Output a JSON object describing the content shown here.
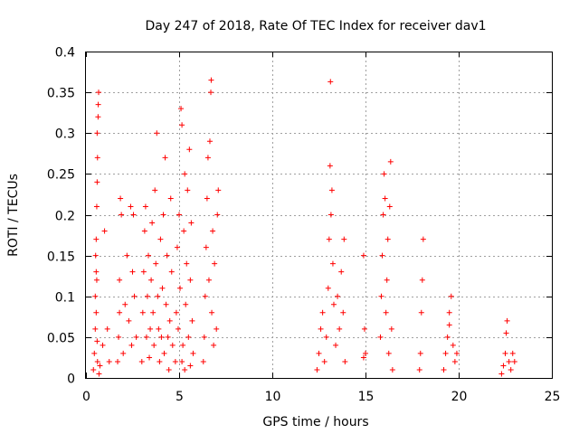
{
  "chart_data": {
    "type": "scatter",
    "title": "Day 247 of 2018, Rate Of TEC Index for receiver dav1",
    "xlabel": "GPS time / hours",
    "ylabel": "ROTI / TECUs",
    "xlim": [
      0,
      25
    ],
    "ylim": [
      0,
      0.4
    ],
    "x_ticks": [
      0,
      5,
      10,
      15,
      20,
      25
    ],
    "y_ticks": [
      0,
      0.05,
      0.1,
      0.15,
      0.2,
      0.25,
      0.3,
      0.35,
      0.4
    ],
    "x_tick_labels": [
      "0",
      "5",
      "10",
      "15",
      "20",
      "25"
    ],
    "y_tick_labels": [
      "0",
      "0.05",
      "0.1",
      "0.15",
      "0.2",
      "0.25",
      "0.3",
      "0.35",
      "0.4"
    ],
    "grid": true,
    "marker": "+",
    "marker_color": "#ff0000",
    "series": [
      {
        "points": [
          [
            0.4,
            0.01
          ],
          [
            0.45,
            0.03
          ],
          [
            0.5,
            0.06
          ],
          [
            0.5,
            0.1
          ],
          [
            0.52,
            0.15
          ],
          [
            0.55,
            0.13
          ],
          [
            0.55,
            0.17
          ],
          [
            0.58,
            0.21
          ],
          [
            0.6,
            0.24
          ],
          [
            0.62,
            0.27
          ],
          [
            0.6,
            0.3
          ],
          [
            0.65,
            0.32
          ],
          [
            0.66,
            0.335
          ],
          [
            0.68,
            0.35
          ],
          [
            0.55,
            0.08
          ],
          [
            0.6,
            0.045
          ],
          [
            0.62,
            0.02
          ],
          [
            0.7,
            0.005
          ],
          [
            0.75,
            0.015
          ],
          [
            0.58,
            0.12
          ],
          [
            0.9,
            0.04
          ],
          [
            1.0,
            0.18
          ],
          [
            1.15,
            0.06
          ],
          [
            1.25,
            0.02
          ],
          [
            1.7,
            0.02
          ],
          [
            1.75,
            0.05
          ],
          [
            1.8,
            0.08
          ],
          [
            1.8,
            0.12
          ],
          [
            1.85,
            0.22
          ],
          [
            1.9,
            0.2
          ],
          [
            2.0,
            0.03
          ],
          [
            2.1,
            0.09
          ],
          [
            2.2,
            0.15
          ],
          [
            2.3,
            0.07
          ],
          [
            2.4,
            0.21
          ],
          [
            2.45,
            0.04
          ],
          [
            2.55,
            0.2
          ],
          [
            2.6,
            0.1
          ],
          [
            2.7,
            0.05
          ],
          [
            2.5,
            0.13
          ],
          [
            3.0,
            0.02
          ],
          [
            3.05,
            0.08
          ],
          [
            3.1,
            0.13
          ],
          [
            3.15,
            0.18
          ],
          [
            3.2,
            0.21
          ],
          [
            3.25,
            0.05
          ],
          [
            3.3,
            0.1
          ],
          [
            3.35,
            0.15
          ],
          [
            3.4,
            0.025
          ],
          [
            3.45,
            0.06
          ],
          [
            3.5,
            0.12
          ],
          [
            3.55,
            0.19
          ],
          [
            3.6,
            0.08
          ],
          [
            3.65,
            0.04
          ],
          [
            3.7,
            0.23
          ],
          [
            3.75,
            0.14
          ],
          [
            3.8,
            0.3
          ],
          [
            3.85,
            0.1
          ],
          [
            3.9,
            0.06
          ],
          [
            3.95,
            0.02
          ],
          [
            4.0,
            0.17
          ],
          [
            4.05,
            0.05
          ],
          [
            4.1,
            0.11
          ],
          [
            4.15,
            0.2
          ],
          [
            4.2,
            0.03
          ],
          [
            4.25,
            0.27
          ],
          [
            4.3,
            0.09
          ],
          [
            4.35,
            0.15
          ],
          [
            4.4,
            0.05
          ],
          [
            4.45,
            0.01
          ],
          [
            4.5,
            0.07
          ],
          [
            4.55,
            0.22
          ],
          [
            4.6,
            0.13
          ],
          [
            4.65,
            0.04
          ],
          [
            4.8,
            0.02
          ],
          [
            4.85,
            0.08
          ],
          [
            4.9,
            0.16
          ],
          [
            4.95,
            0.06
          ],
          [
            5.0,
            0.2
          ],
          [
            5.05,
            0.11
          ],
          [
            5.1,
            0.33
          ],
          [
            5.15,
            0.31
          ],
          [
            5.2,
            0.04
          ],
          [
            5.25,
            0.18
          ],
          [
            5.3,
            0.25
          ],
          [
            5.35,
            0.09
          ],
          [
            5.4,
            0.14
          ],
          [
            5.45,
            0.23
          ],
          [
            5.5,
            0.05
          ],
          [
            5.55,
            0.28
          ],
          [
            5.6,
            0.12
          ],
          [
            5.65,
            0.19
          ],
          [
            5.7,
            0.07
          ],
          [
            5.75,
            0.03
          ],
          [
            5.15,
            0.02
          ],
          [
            5.3,
            0.01
          ],
          [
            5.6,
            0.015
          ],
          [
            6.3,
            0.02
          ],
          [
            6.35,
            0.05
          ],
          [
            6.4,
            0.1
          ],
          [
            6.45,
            0.16
          ],
          [
            6.5,
            0.22
          ],
          [
            6.55,
            0.27
          ],
          [
            6.6,
            0.12
          ],
          [
            6.65,
            0.29
          ],
          [
            6.7,
            0.35
          ],
          [
            6.72,
            0.365
          ],
          [
            6.75,
            0.08
          ],
          [
            6.8,
            0.18
          ],
          [
            6.85,
            0.04
          ],
          [
            6.9,
            0.14
          ],
          [
            7.0,
            0.06
          ],
          [
            7.05,
            0.2
          ],
          [
            7.1,
            0.23
          ],
          [
            12.4,
            0.01
          ],
          [
            12.5,
            0.03
          ],
          [
            12.6,
            0.06
          ],
          [
            12.7,
            0.08
          ],
          [
            12.8,
            0.02
          ],
          [
            12.9,
            0.05
          ],
          [
            13.0,
            0.11
          ],
          [
            13.05,
            0.17
          ],
          [
            13.1,
            0.26
          ],
          [
            13.12,
            0.363
          ],
          [
            13.15,
            0.2
          ],
          [
            13.2,
            0.23
          ],
          [
            13.25,
            0.14
          ],
          [
            13.3,
            0.09
          ],
          [
            13.4,
            0.04
          ],
          [
            13.5,
            0.1
          ],
          [
            13.6,
            0.06
          ],
          [
            13.7,
            0.13
          ],
          [
            13.8,
            0.08
          ],
          [
            13.85,
            0.17
          ],
          [
            13.9,
            0.02
          ],
          [
            14.9,
            0.15
          ],
          [
            14.95,
            0.06
          ],
          [
            15.0,
            0.03
          ],
          [
            14.9,
            0.025
          ],
          [
            15.8,
            0.05
          ],
          [
            15.85,
            0.1
          ],
          [
            15.9,
            0.15
          ],
          [
            15.95,
            0.2
          ],
          [
            16.0,
            0.25
          ],
          [
            16.05,
            0.22
          ],
          [
            16.1,
            0.08
          ],
          [
            16.15,
            0.12
          ],
          [
            16.2,
            0.17
          ],
          [
            16.25,
            0.03
          ],
          [
            16.3,
            0.21
          ],
          [
            16.35,
            0.265
          ],
          [
            16.4,
            0.06
          ],
          [
            16.45,
            0.01
          ],
          [
            17.9,
            0.01
          ],
          [
            17.95,
            0.03
          ],
          [
            18.0,
            0.08
          ],
          [
            18.05,
            0.12
          ],
          [
            18.1,
            0.17
          ],
          [
            19.2,
            0.01
          ],
          [
            19.3,
            0.03
          ],
          [
            19.4,
            0.05
          ],
          [
            19.5,
            0.08
          ],
          [
            19.6,
            0.1
          ],
          [
            19.7,
            0.04
          ],
          [
            19.8,
            0.02
          ],
          [
            19.9,
            0.03
          ],
          [
            19.5,
            0.065
          ],
          [
            22.3,
            0.005
          ],
          [
            22.4,
            0.015
          ],
          [
            22.5,
            0.03
          ],
          [
            22.55,
            0.055
          ],
          [
            22.6,
            0.07
          ],
          [
            22.7,
            0.02
          ],
          [
            22.8,
            0.01
          ],
          [
            22.9,
            0.03
          ],
          [
            23.0,
            0.02
          ]
        ]
      }
    ]
  }
}
